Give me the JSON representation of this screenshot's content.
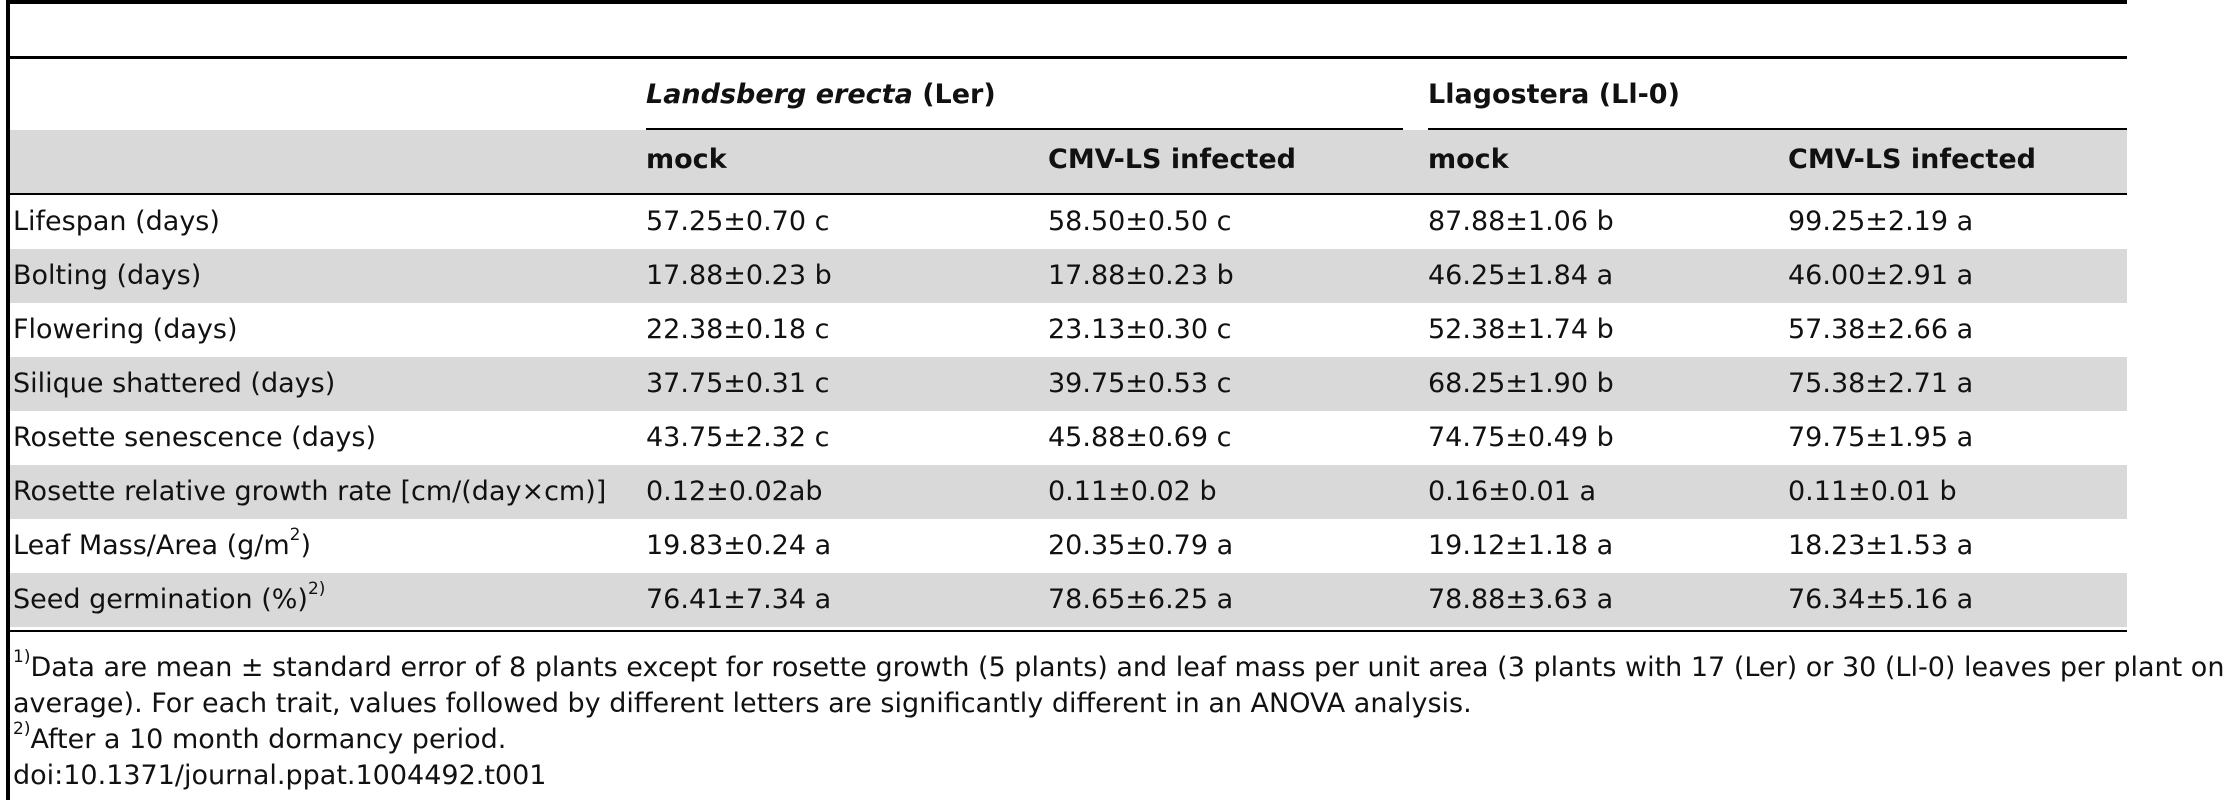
{
  "groups": [
    {
      "italic": "Landsberg erecta",
      "rest": " (Ler)"
    },
    {
      "italic": "",
      "rest": "Llagostera (Ll-0)"
    }
  ],
  "subheaders": [
    "mock",
    "CMV-LS infected",
    "mock",
    "CMV-LS infected"
  ],
  "rows": [
    {
      "label": "Lifespan (days)",
      "sup": "",
      "values": [
        "57.25±0.70 c",
        "58.50±0.50 c",
        "87.88±1.06 b",
        "99.25±2.19 a"
      ]
    },
    {
      "label": "Bolting (days)",
      "sup": "",
      "values": [
        "17.88±0.23 b",
        "17.88±0.23 b",
        "46.25±1.84 a",
        "46.00±2.91 a"
      ]
    },
    {
      "label": "Flowering (days)",
      "sup": "",
      "values": [
        "22.38±0.18 c",
        "23.13±0.30 c",
        "52.38±1.74 b",
        "57.38±2.66 a"
      ]
    },
    {
      "label": "Silique shattered (days)",
      "sup": "",
      "values": [
        "37.75±0.31 c",
        "39.75±0.53 c",
        "68.25±1.90 b",
        "75.38±2.71 a"
      ]
    },
    {
      "label": "Rosette senescence (days)",
      "sup": "",
      "values": [
        "43.75±2.32 c",
        "45.88±0.69 c",
        "74.75±0.49 b",
        "79.75±1.95 a"
      ]
    },
    {
      "label": "Rosette relative growth rate [cm/(day×cm)]",
      "sup": "",
      "values": [
        "0.12±0.02ab",
        "0.11±0.02 b",
        "0.16±0.01 a",
        "0.11±0.01 b"
      ]
    },
    {
      "label": "Leaf Mass/Area (g/m",
      "sup": "2",
      "tail": ")",
      "values": [
        "19.83±0.24 a",
        "20.35±0.79 a",
        "19.12±1.18 a",
        "18.23±1.53 a"
      ]
    },
    {
      "label": "Seed germination (%)",
      "sup": "2)",
      "tail": "",
      "values": [
        "76.41±7.34 a",
        "78.65±6.25 a",
        "78.88±3.63 a",
        "76.34±5.16 a"
      ]
    }
  ],
  "footnotes": [
    {
      "sup": "1)",
      "text": "Data are mean ± standard error of 8 plants except for rosette growth (5 plants) and leaf mass per unit area (3 plants with 17 (Ler) or 30 (Ll-0) leaves per plant on"
    },
    {
      "sup": "",
      "text": "average). For each trait, values followed by different letters are significantly different in an ANOVA analysis."
    },
    {
      "sup": "2)",
      "text": "After a 10 month dormancy period."
    },
    {
      "sup": "",
      "text": "doi:10.1371/journal.ppat.1004492.t001"
    }
  ]
}
